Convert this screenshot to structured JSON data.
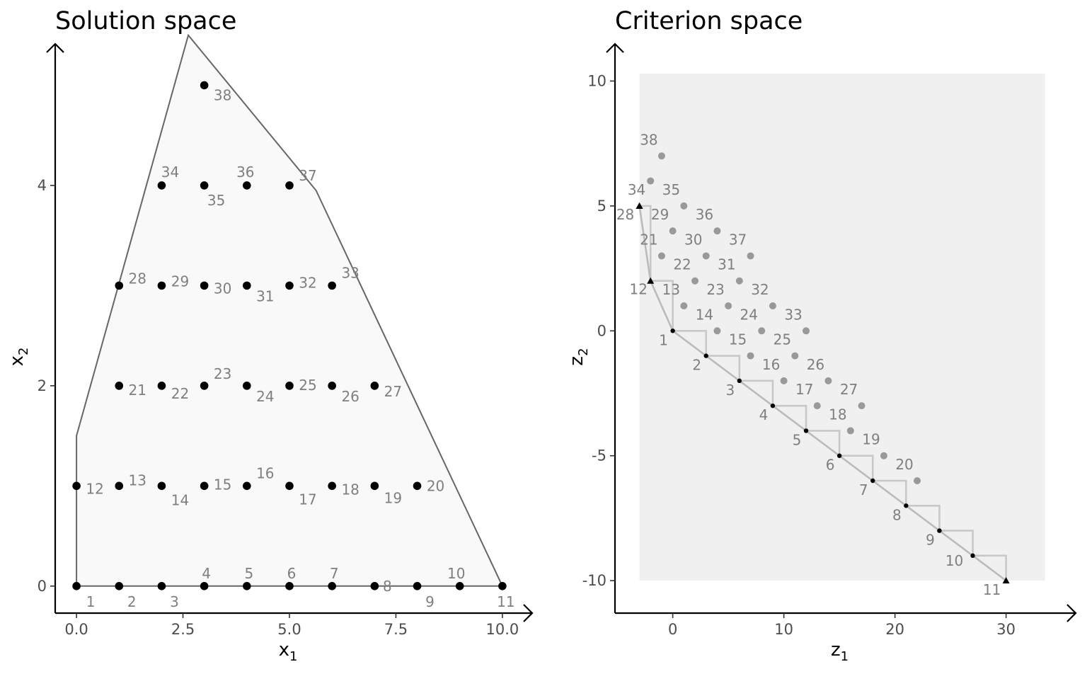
{
  "chart_data": [
    {
      "type": "scatter",
      "title": "Solution space",
      "xlabel": "x",
      "xlabel_sub": "1",
      "ylabel": "x",
      "ylabel_sub": "2",
      "xlim": [
        -0.5,
        10.5
      ],
      "ylim": [
        -0.27,
        5.3
      ],
      "xticks": [
        0,
        2.5,
        5,
        7.5,
        10
      ],
      "xtick_labels": [
        "0.0",
        "2.5",
        "5.0",
        "7.5",
        "10.0"
      ],
      "yticks": [
        0,
        2,
        4
      ],
      "ytick_labels": [
        "0",
        "2",
        "4"
      ],
      "feasible_region": [
        [
          0,
          0
        ],
        [
          0,
          1.5
        ],
        [
          2.625,
          5.5
        ],
        [
          5.625,
          3.95
        ],
        [
          10,
          0
        ]
      ],
      "points": [
        {
          "id": "1",
          "x": 0,
          "y": 0
        },
        {
          "id": "2",
          "x": 1,
          "y": 0
        },
        {
          "id": "3",
          "x": 2,
          "y": 0
        },
        {
          "id": "4",
          "x": 3,
          "y": 0
        },
        {
          "id": "5",
          "x": 4,
          "y": 0
        },
        {
          "id": "6",
          "x": 5,
          "y": 0
        },
        {
          "id": "7",
          "x": 6,
          "y": 0
        },
        {
          "id": "8",
          "x": 7,
          "y": 0
        },
        {
          "id": "9",
          "x": 8,
          "y": 0
        },
        {
          "id": "10",
          "x": 9,
          "y": 0
        },
        {
          "id": "11",
          "x": 10,
          "y": 0
        },
        {
          "id": "12",
          "x": 0,
          "y": 1
        },
        {
          "id": "13",
          "x": 1,
          "y": 1
        },
        {
          "id": "14",
          "x": 2,
          "y": 1
        },
        {
          "id": "15",
          "x": 3,
          "y": 1
        },
        {
          "id": "16",
          "x": 4,
          "y": 1
        },
        {
          "id": "17",
          "x": 5,
          "y": 1
        },
        {
          "id": "18",
          "x": 6,
          "y": 1
        },
        {
          "id": "19",
          "x": 7,
          "y": 1
        },
        {
          "id": "20",
          "x": 8,
          "y": 1
        },
        {
          "id": "21",
          "x": 1,
          "y": 2
        },
        {
          "id": "22",
          "x": 2,
          "y": 2
        },
        {
          "id": "23",
          "x": 3,
          "y": 2
        },
        {
          "id": "24",
          "x": 4,
          "y": 2
        },
        {
          "id": "25",
          "x": 5,
          "y": 2
        },
        {
          "id": "26",
          "x": 6,
          "y": 2
        },
        {
          "id": "27",
          "x": 7,
          "y": 2
        },
        {
          "id": "28",
          "x": 1,
          "y": 3
        },
        {
          "id": "29",
          "x": 2,
          "y": 3
        },
        {
          "id": "30",
          "x": 3,
          "y": 3
        },
        {
          "id": "31",
          "x": 4,
          "y": 3
        },
        {
          "id": "32",
          "x": 5,
          "y": 3
        },
        {
          "id": "33",
          "x": 6,
          "y": 3
        },
        {
          "id": "34",
          "x": 2,
          "y": 4
        },
        {
          "id": "35",
          "x": 3,
          "y": 4
        },
        {
          "id": "36",
          "x": 4,
          "y": 4
        },
        {
          "id": "37",
          "x": 5,
          "y": 4
        },
        {
          "id": "38",
          "x": 3,
          "y": 5
        }
      ]
    },
    {
      "type": "scatter",
      "title": "Criterion space",
      "xlabel": "z",
      "xlabel_sub": "1",
      "ylabel": "z",
      "ylabel_sub": "2",
      "xlim": [
        -5.2,
        35.5
      ],
      "ylim": [
        -11.3,
        11.6
      ],
      "xticks": [
        0,
        10,
        20,
        30
      ],
      "xtick_labels": [
        "0",
        "10",
        "20",
        "30"
      ],
      "yticks": [
        -10,
        -5,
        0,
        5,
        10
      ],
      "ytick_labels": [
        "-10",
        "-5",
        "0",
        "5",
        "10"
      ],
      "dominated_region": {
        "x": [
          -3,
          33.5
        ],
        "y": [
          -10,
          10.3
        ]
      },
      "points": [
        {
          "id": "1",
          "x": 0,
          "y": 0,
          "kind": "nondominated"
        },
        {
          "id": "2",
          "x": 3,
          "y": -1,
          "kind": "nondominated"
        },
        {
          "id": "3",
          "x": 6,
          "y": -2,
          "kind": "nondominated"
        },
        {
          "id": "4",
          "x": 9,
          "y": -3,
          "kind": "nondominated"
        },
        {
          "id": "5",
          "x": 12,
          "y": -4,
          "kind": "nondominated"
        },
        {
          "id": "6",
          "x": 15,
          "y": -5,
          "kind": "nondominated"
        },
        {
          "id": "7",
          "x": 18,
          "y": -6,
          "kind": "nondominated"
        },
        {
          "id": "8",
          "x": 21,
          "y": -7,
          "kind": "nondominated"
        },
        {
          "id": "9",
          "x": 24,
          "y": -8,
          "kind": "nondominated"
        },
        {
          "id": "10",
          "x": 27,
          "y": -9,
          "kind": "nondominated"
        },
        {
          "id": "11",
          "x": 30,
          "y": -10,
          "kind": "extreme"
        },
        {
          "id": "12",
          "x": -2,
          "y": 2,
          "kind": "extreme"
        },
        {
          "id": "13",
          "x": 1,
          "y": 1,
          "kind": "dominated"
        },
        {
          "id": "14",
          "x": 4,
          "y": 0,
          "kind": "dominated"
        },
        {
          "id": "15",
          "x": 7,
          "y": -1,
          "kind": "dominated"
        },
        {
          "id": "16",
          "x": 10,
          "y": -2,
          "kind": "dominated"
        },
        {
          "id": "17",
          "x": 13,
          "y": -3,
          "kind": "dominated"
        },
        {
          "id": "18",
          "x": 16,
          "y": -4,
          "kind": "dominated"
        },
        {
          "id": "19",
          "x": 19,
          "y": -5,
          "kind": "dominated"
        },
        {
          "id": "20",
          "x": 22,
          "y": -6,
          "kind": "dominated"
        },
        {
          "id": "21",
          "x": -1,
          "y": 3,
          "kind": "dominated"
        },
        {
          "id": "22",
          "x": 2,
          "y": 2,
          "kind": "dominated"
        },
        {
          "id": "23",
          "x": 5,
          "y": 1,
          "kind": "dominated"
        },
        {
          "id": "24",
          "x": 8,
          "y": 0,
          "kind": "dominated"
        },
        {
          "id": "25",
          "x": 11,
          "y": -1,
          "kind": "dominated"
        },
        {
          "id": "26",
          "x": 14,
          "y": -2,
          "kind": "dominated"
        },
        {
          "id": "27",
          "x": 17,
          "y": -3,
          "kind": "dominated"
        },
        {
          "id": "28",
          "x": -3,
          "y": 5,
          "kind": "extreme"
        },
        {
          "id": "29",
          "x": 0,
          "y": 4,
          "kind": "dominated"
        },
        {
          "id": "30",
          "x": 3,
          "y": 3,
          "kind": "dominated"
        },
        {
          "id": "31",
          "x": 6,
          "y": 2,
          "kind": "dominated"
        },
        {
          "id": "32",
          "x": 9,
          "y": 1,
          "kind": "dominated"
        },
        {
          "id": "33",
          "x": 12,
          "y": 0,
          "kind": "dominated"
        },
        {
          "id": "34",
          "x": -3,
          "y": 5,
          "kind": "extreme"
        },
        {
          "id": "35",
          "x": 1,
          "y": 5,
          "kind": "dominated"
        },
        {
          "id": "36",
          "x": 4,
          "y": 4,
          "kind": "dominated"
        },
        {
          "id": "37",
          "x": 7,
          "y": 3,
          "kind": "dominated"
        },
        {
          "id": "38",
          "x": -1,
          "y": 7,
          "kind": "dominated"
        },
        {
          "id": "38b",
          "x": -2,
          "y": 6,
          "kind": "dominated_unlabeled"
        }
      ],
      "nondominated_staircase": [
        [
          -3,
          5
        ],
        [
          -2,
          5
        ],
        [
          -2,
          2
        ],
        [
          0,
          2
        ],
        [
          0,
          0
        ],
        [
          3,
          0
        ],
        [
          3,
          -1
        ],
        [
          6,
          -1
        ],
        [
          6,
          -2
        ],
        [
          9,
          -2
        ],
        [
          9,
          -3
        ],
        [
          12,
          -3
        ],
        [
          12,
          -4
        ],
        [
          15,
          -4
        ],
        [
          15,
          -5
        ],
        [
          18,
          -5
        ],
        [
          18,
          -6
        ],
        [
          21,
          -6
        ],
        [
          21,
          -7
        ],
        [
          24,
          -7
        ],
        [
          24,
          -8
        ],
        [
          27,
          -8
        ],
        [
          27,
          -9
        ],
        [
          30,
          -9
        ],
        [
          30,
          -10
        ]
      ],
      "nondominated_hull": [
        [
          -3,
          5
        ],
        [
          -2,
          2
        ],
        [
          0,
          0
        ],
        [
          30,
          -10
        ]
      ]
    }
  ],
  "colors": {
    "point": "#000000",
    "dominated_point": "#999999",
    "label": "#7f7f7f",
    "region_fill_solution": "#f9f9f9",
    "region_fill_criterion": "#f0f0f0",
    "region_border": "#666666",
    "staircase": "#c8c8c8",
    "hull": "#bbbbbb"
  }
}
